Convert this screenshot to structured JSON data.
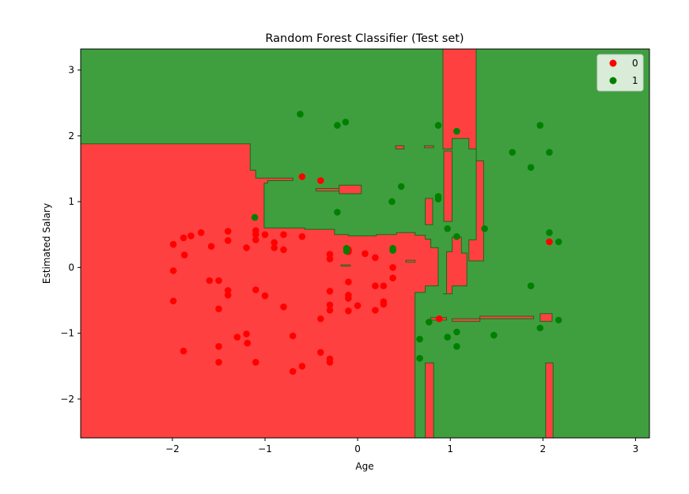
{
  "chart_data": {
    "type": "scatter",
    "title": "Random Forest Classifier (Test set)",
    "xlabel": "Age",
    "ylabel": "Estimated Salary",
    "xlim": [
      -2.99,
      3.15
    ],
    "ylim": [
      -2.59,
      3.32
    ],
    "x_ticks": [
      -2,
      -1,
      0,
      1,
      2,
      3
    ],
    "y_ticks": [
      -2,
      -1,
      0,
      1,
      2,
      3
    ],
    "x_tick_labels": [
      "−2",
      "−1",
      "0",
      "1",
      "2",
      "3"
    ],
    "y_tick_labels": [
      "−2",
      "−1",
      "0",
      "1",
      "2",
      "3"
    ],
    "grid": false,
    "legend_position": "top-right",
    "colors": {
      "region_0": "#ff4040",
      "region_1": "#3f9f3f",
      "boundary": "#1b661b",
      "point_0": "#ff0000",
      "point_1": "#008000"
    },
    "regions_note_for_class_0": "decision regions (data units) predicted class 0",
    "red_regions": [
      [
        [
          -2.99,
          -2.59
        ],
        [
          0.62,
          -2.59
        ],
        [
          0.62,
          -0.38
        ],
        [
          0.73,
          -0.38
        ],
        [
          0.73,
          -0.28
        ],
        [
          0.87,
          -0.28
        ],
        [
          0.87,
          0.3
        ],
        [
          0.79,
          0.3
        ],
        [
          0.79,
          0.43
        ],
        [
          0.73,
          0.43
        ],
        [
          0.73,
          0.49
        ],
        [
          0.62,
          0.49
        ],
        [
          0.62,
          0.53
        ],
        [
          0.42,
          0.53
        ],
        [
          0.42,
          0.5
        ],
        [
          0.2,
          0.5
        ],
        [
          0.2,
          0.48
        ],
        [
          -0.1,
          0.48
        ],
        [
          -0.1,
          0.5
        ],
        [
          -0.25,
          0.5
        ],
        [
          -0.25,
          0.58
        ],
        [
          -0.57,
          0.58
        ],
        [
          -0.57,
          0.6
        ],
        [
          -1.01,
          0.6
        ],
        [
          -1.01,
          1.28
        ],
        [
          -0.97,
          1.28
        ],
        [
          -0.97,
          1.32
        ],
        [
          -0.7,
          1.32
        ],
        [
          -0.7,
          1.36
        ],
        [
          -1.1,
          1.36
        ],
        [
          -1.1,
          1.48
        ],
        [
          -1.16,
          1.48
        ],
        [
          -1.16,
          1.88
        ],
        [
          -2.99,
          1.88
        ]
      ],
      [
        [
          0.92,
          -0.4
        ],
        [
          1.02,
          -0.4
        ],
        [
          1.02,
          -0.28
        ],
        [
          1.18,
          -0.28
        ],
        [
          1.18,
          0.22
        ],
        [
          1.12,
          0.22
        ],
        [
          1.12,
          0.46
        ],
        [
          1.02,
          0.46
        ],
        [
          1.02,
          0.24
        ],
        [
          0.96,
          0.24
        ],
        [
          0.96,
          -0.4
        ]
      ],
      [
        [
          0.93,
          0.7
        ],
        [
          1.02,
          0.7
        ],
        [
          1.02,
          1.77
        ],
        [
          0.93,
          1.77
        ]
      ],
      [
        [
          0.73,
          0.65
        ],
        [
          0.81,
          0.65
        ],
        [
          0.81,
          1.05
        ],
        [
          0.73,
          1.05
        ]
      ],
      [
        [
          0.92,
          1.8
        ],
        [
          1.02,
          1.8
        ],
        [
          1.02,
          1.96
        ],
        [
          1.2,
          1.96
        ],
        [
          1.2,
          1.8
        ],
        [
          1.28,
          1.8
        ],
        [
          1.28,
          1.62
        ],
        [
          1.36,
          1.62
        ],
        [
          1.36,
          0.1
        ],
        [
          1.2,
          0.1
        ],
        [
          1.2,
          0.42
        ],
        [
          1.28,
          0.42
        ],
        [
          1.28,
          3.32
        ],
        [
          0.92,
          3.32
        ]
      ],
      [
        [
          -0.2,
          1.12
        ],
        [
          0.04,
          1.12
        ],
        [
          0.04,
          1.25
        ],
        [
          -0.2,
          1.25
        ]
      ],
      [
        [
          -0.45,
          1.16
        ],
        [
          -0.2,
          1.16
        ],
        [
          -0.2,
          1.2
        ],
        [
          -0.45,
          1.2
        ]
      ],
      [
        [
          0.73,
          -2.59
        ],
        [
          0.82,
          -2.59
        ],
        [
          0.82,
          -1.45
        ],
        [
          0.73,
          -1.45
        ]
      ],
      [
        [
          2.03,
          -2.59
        ],
        [
          2.11,
          -2.59
        ],
        [
          2.11,
          -1.45
        ],
        [
          2.03,
          -1.45
        ]
      ],
      [
        [
          0.79,
          -0.76
        ],
        [
          0.96,
          -0.76
        ],
        [
          0.96,
          -0.8
        ],
        [
          0.79,
          -0.8
        ]
      ],
      [
        [
          1.02,
          -0.78
        ],
        [
          1.32,
          -0.78
        ],
        [
          1.32,
          -0.82
        ],
        [
          1.02,
          -0.82
        ]
      ],
      [
        [
          1.32,
          -0.74
        ],
        [
          1.9,
          -0.74
        ],
        [
          1.9,
          -0.78
        ],
        [
          1.32,
          -0.78
        ]
      ],
      [
        [
          1.97,
          -0.7
        ],
        [
          2.1,
          -0.7
        ],
        [
          2.1,
          -0.82
        ],
        [
          1.97,
          -0.82
        ]
      ],
      [
        [
          0.41,
          1.8
        ],
        [
          0.5,
          1.8
        ],
        [
          0.5,
          1.85
        ],
        [
          0.41,
          1.85
        ]
      ],
      [
        [
          0.72,
          1.82
        ],
        [
          0.82,
          1.82
        ],
        [
          0.82,
          1.85
        ],
        [
          0.72,
          1.85
        ]
      ],
      [
        [
          0.52,
          0.08
        ],
        [
          0.62,
          0.08
        ],
        [
          0.62,
          0.11
        ],
        [
          0.52,
          0.11
        ]
      ],
      [
        [
          -0.18,
          0.02
        ],
        [
          -0.08,
          0.02
        ],
        [
          -0.08,
          0.04
        ],
        [
          -0.18,
          0.04
        ]
      ]
    ],
    "series": [
      {
        "name": "0",
        "points": [
          [
            -1.99,
            0.35
          ],
          [
            -1.88,
            0.45
          ],
          [
            -1.8,
            0.48
          ],
          [
            -1.69,
            0.53
          ],
          [
            -1.58,
            0.32
          ],
          [
            -1.99,
            -0.05
          ],
          [
            -1.87,
            0.19
          ],
          [
            -1.99,
            -0.51
          ],
          [
            -1.6,
            -0.2
          ],
          [
            -1.5,
            -0.2
          ],
          [
            -1.5,
            -0.63
          ],
          [
            -1.4,
            -0.35
          ],
          [
            -1.4,
            -0.42
          ],
          [
            -1.4,
            0.55
          ],
          [
            -1.4,
            0.41
          ],
          [
            -1.3,
            -1.06
          ],
          [
            -1.2,
            -1.01
          ],
          [
            -1.19,
            -1.15
          ],
          [
            -1.1,
            -0.34
          ],
          [
            -1.1,
            0.56
          ],
          [
            -1.1,
            0.5
          ],
          [
            -1.1,
            0.42
          ],
          [
            -1.1,
            -1.44
          ],
          [
            -1.5,
            -1.2
          ],
          [
            -1.5,
            -1.44
          ],
          [
            -1.88,
            -1.27
          ],
          [
            -1.2,
            0.3
          ],
          [
            -1.0,
            -0.43
          ],
          [
            -1.0,
            0.5
          ],
          [
            -0.9,
            0.38
          ],
          [
            -0.9,
            0.3
          ],
          [
            -0.8,
            0.5
          ],
          [
            -0.8,
            0.27
          ],
          [
            -0.8,
            -0.6
          ],
          [
            -0.7,
            -1.04
          ],
          [
            -0.7,
            -1.58
          ],
          [
            -0.6,
            -1.5
          ],
          [
            -0.6,
            0.47
          ],
          [
            -0.6,
            1.38
          ],
          [
            -0.4,
            1.32
          ],
          [
            -0.4,
            -0.78
          ],
          [
            -0.4,
            -1.29
          ],
          [
            -0.3,
            -1.39
          ],
          [
            -0.3,
            -1.44
          ],
          [
            -0.3,
            -0.65
          ],
          [
            -0.3,
            -0.57
          ],
          [
            -0.3,
            -0.36
          ],
          [
            -0.3,
            0.13
          ],
          [
            -0.3,
            0.2
          ],
          [
            -0.1,
            0.24
          ],
          [
            -0.1,
            0.27
          ],
          [
            -0.1,
            -0.22
          ],
          [
            -0.1,
            -0.42
          ],
          [
            -0.1,
            -0.47
          ],
          [
            -0.1,
            -0.66
          ],
          [
            0.0,
            -0.58
          ],
          [
            0.08,
            0.21
          ],
          [
            0.19,
            0.15
          ],
          [
            0.19,
            -0.28
          ],
          [
            0.19,
            -0.65
          ],
          [
            0.28,
            -0.52
          ],
          [
            0.28,
            -0.28
          ],
          [
            0.28,
            -0.56
          ],
          [
            0.38,
            0.0
          ],
          [
            0.38,
            -0.16
          ],
          [
            0.88,
            -0.78
          ],
          [
            2.07,
            0.39
          ]
        ]
      },
      {
        "name": "1",
        "points": [
          [
            -0.62,
            2.33
          ],
          [
            -0.22,
            2.16
          ],
          [
            -0.13,
            2.21
          ],
          [
            0.87,
            2.16
          ],
          [
            1.07,
            2.07
          ],
          [
            1.67,
            1.75
          ],
          [
            1.97,
            2.16
          ],
          [
            2.07,
            1.75
          ],
          [
            1.87,
            1.52
          ],
          [
            0.47,
            1.23
          ],
          [
            0.37,
            1.0
          ],
          [
            0.87,
            1.08
          ],
          [
            0.87,
            1.04
          ],
          [
            -0.22,
            0.84
          ],
          [
            -1.11,
            0.76
          ],
          [
            0.97,
            0.59
          ],
          [
            1.07,
            0.47
          ],
          [
            1.37,
            0.59
          ],
          [
            2.07,
            0.53
          ],
          [
            2.17,
            0.39
          ],
          [
            -0.12,
            0.29
          ],
          [
            -0.12,
            0.25
          ],
          [
            0.38,
            0.29
          ],
          [
            0.38,
            0.26
          ],
          [
            1.87,
            -0.28
          ],
          [
            0.77,
            -0.83
          ],
          [
            0.67,
            -1.09
          ],
          [
            0.97,
            -1.06
          ],
          [
            1.07,
            -0.98
          ],
          [
            1.47,
            -1.03
          ],
          [
            1.07,
            -1.2
          ],
          [
            0.67,
            -1.38
          ],
          [
            1.97,
            -0.92
          ],
          [
            2.17,
            -0.8
          ]
        ]
      }
    ]
  }
}
